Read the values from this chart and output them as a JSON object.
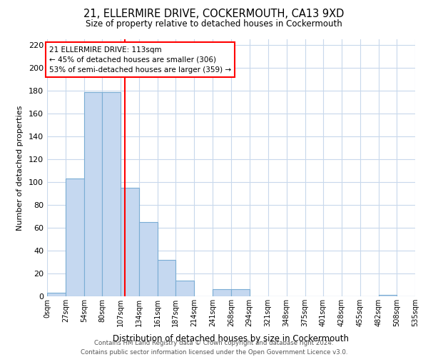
{
  "title": "21, ELLERMIRE DRIVE, COCKERMOUTH, CA13 9XD",
  "subtitle": "Size of property relative to detached houses in Cockermouth",
  "xlabel": "Distribution of detached houses by size in Cockermouth",
  "ylabel": "Number of detached properties",
  "bin_edges": [
    0,
    27,
    54,
    80,
    107,
    134,
    161,
    187,
    214,
    241,
    268,
    294,
    321,
    348,
    375,
    401,
    428,
    455,
    482,
    508,
    535
  ],
  "bar_heights": [
    3,
    103,
    179,
    179,
    95,
    65,
    32,
    14,
    0,
    6,
    6,
    0,
    0,
    0,
    0,
    0,
    0,
    0,
    1,
    0
  ],
  "bar_color": "#c5d8f0",
  "bar_edgecolor": "#7aadd4",
  "vline_x": 113,
  "vline_color": "red",
  "annotation_text": "21 ELLERMIRE DRIVE: 113sqm\n← 45% of detached houses are smaller (306)\n53% of semi-detached houses are larger (359) →",
  "annotation_box_color": "white",
  "annotation_box_edgecolor": "red",
  "ylim": [
    0,
    225
  ],
  "yticks": [
    0,
    20,
    40,
    60,
    80,
    100,
    120,
    140,
    160,
    180,
    200,
    220
  ],
  "xtick_labels": [
    "0sqm",
    "27sqm",
    "54sqm",
    "80sqm",
    "107sqm",
    "134sqm",
    "161sqm",
    "187sqm",
    "214sqm",
    "241sqm",
    "268sqm",
    "294sqm",
    "321sqm",
    "348sqm",
    "375sqm",
    "401sqm",
    "428sqm",
    "455sqm",
    "482sqm",
    "508sqm",
    "535sqm"
  ],
  "footer_line1": "Contains HM Land Registry data © Crown copyright and database right 2024.",
  "footer_line2": "Contains public sector information licensed under the Open Government Licence v3.0.",
  "background_color": "#ffffff",
  "grid_color": "#c8d8ec"
}
